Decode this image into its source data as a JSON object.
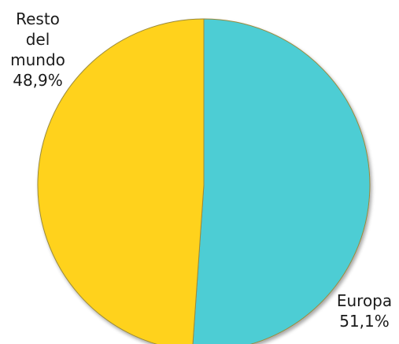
{
  "chart_data": {
    "type": "pie",
    "start_angle_deg": 0,
    "direction": "clockwise",
    "slices": [
      {
        "name": "Europa",
        "value": 51.1,
        "label_lines": [
          "Europa",
          "51,1%"
        ],
        "color": "#4ecdd4",
        "label_position": "bottom-right"
      },
      {
        "name": "Resto del mundo",
        "value": 48.9,
        "label_lines": [
          "Resto",
          "del",
          "mundo",
          "48,9%"
        ],
        "color": "#ffd21f",
        "label_position": "top-left"
      }
    ]
  }
}
